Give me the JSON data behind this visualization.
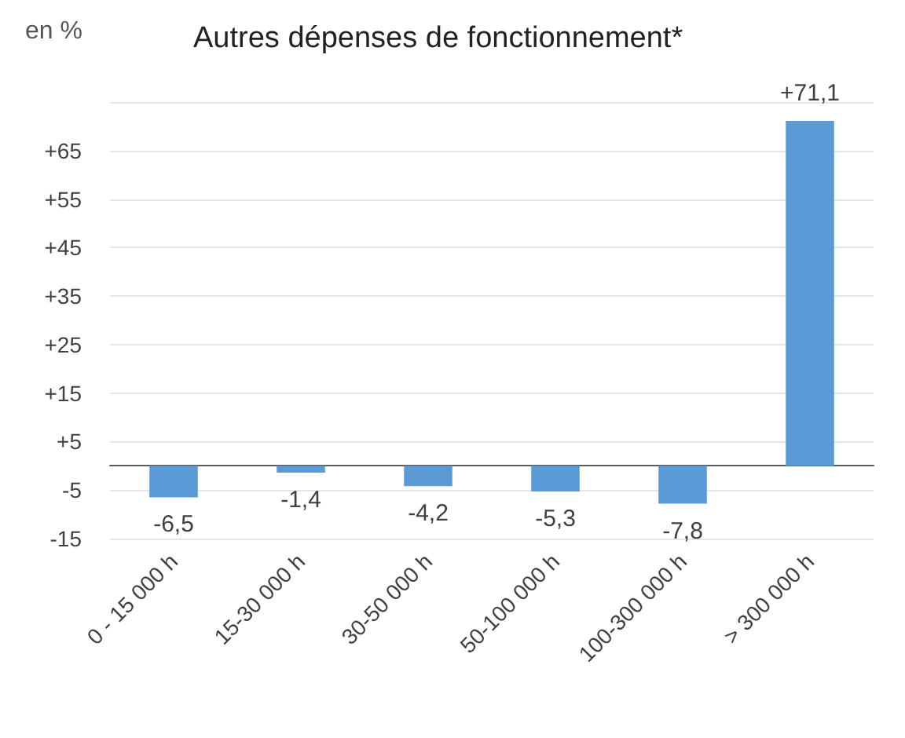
{
  "chart_data": {
    "type": "bar",
    "title": "Autres dépenses de fonctionnement*",
    "ylabel": "en %",
    "categories": [
      "0 - 15 000 h",
      "15-30 000 h",
      "30-50 000 h",
      "50-100 000 h",
      "100-300 000 h",
      "> 300 000 h"
    ],
    "values": [
      -6.5,
      -1.4,
      -4.2,
      -5.3,
      -7.8,
      71.1
    ],
    "value_labels": [
      "-6,5",
      "-1,4",
      "-4,2",
      "-5,3",
      "-7,8",
      "+71,1"
    ],
    "color": "#5b9bd5",
    "ylim": [
      -15,
      75
    ],
    "yticks": [
      -15,
      -5,
      {
        "value": 5,
        "label": "+5"
      },
      {
        "value": 15,
        "label": "+15"
      },
      {
        "value": 25,
        "label": "+25"
      },
      {
        "value": 35,
        "label": "+35"
      },
      {
        "value": 45,
        "label": "+45"
      },
      {
        "value": 55,
        "label": "+55"
      },
      {
        "value": 65,
        "label": "+65"
      },
      {
        "value": 75,
        "label": null
      }
    ],
    "grid": "y"
  }
}
